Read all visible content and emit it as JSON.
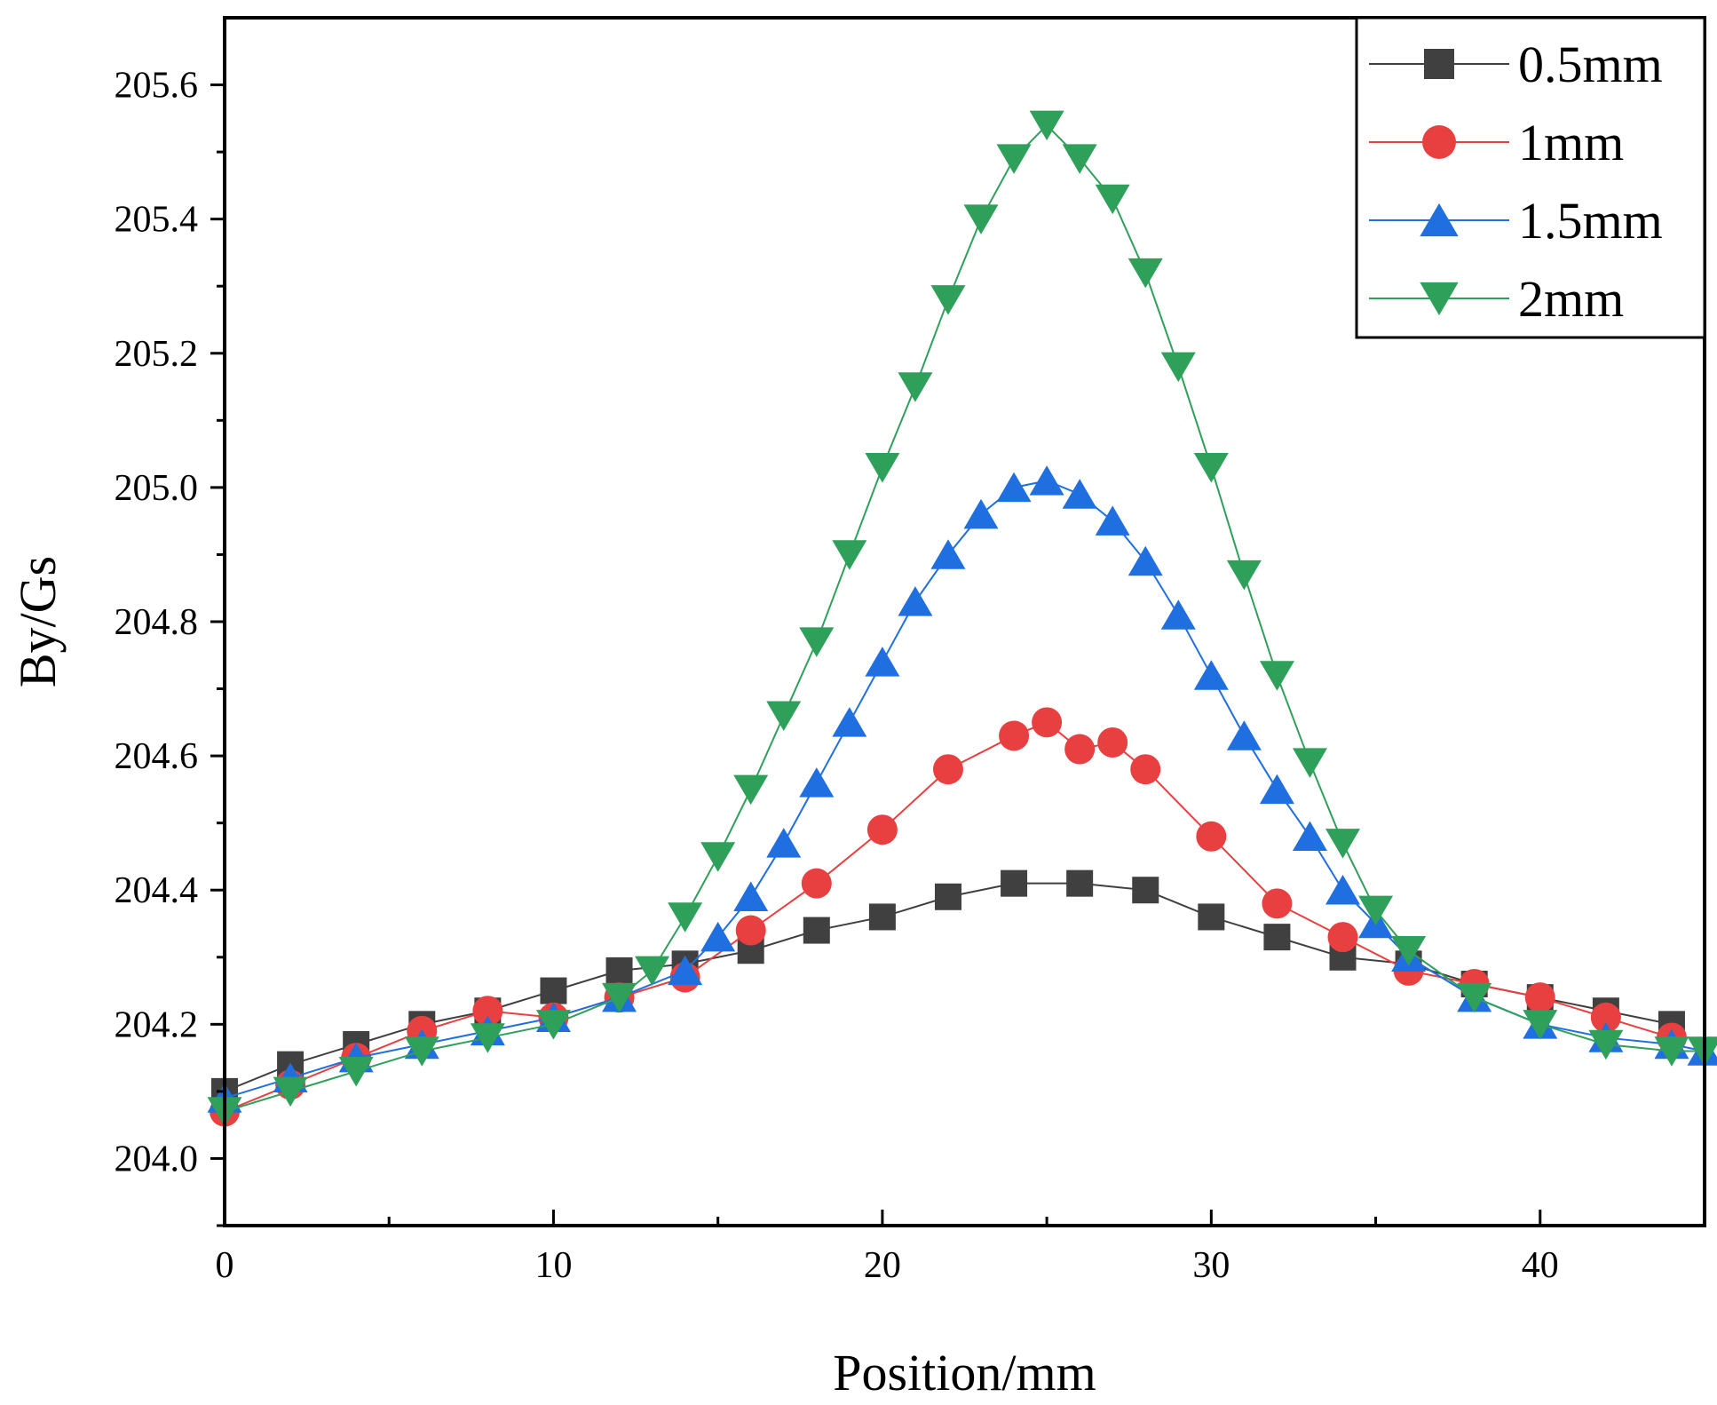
{
  "chart_data": {
    "type": "line",
    "title": "",
    "xlabel": "Position/mm",
    "ylabel": "By/Gs",
    "xlim": [
      0,
      45
    ],
    "ylim": [
      203.9,
      205.7
    ],
    "x_ticks": [
      0,
      10,
      20,
      30,
      40
    ],
    "x_tick_labels": [
      "0",
      "10",
      "20",
      "30",
      "40"
    ],
    "y_ticks": [
      204.0,
      204.2,
      204.4,
      204.6,
      204.8,
      205.0,
      205.2,
      205.4,
      205.6
    ],
    "y_tick_labels": [
      "204.0",
      "204.2",
      "204.4",
      "204.6",
      "204.8",
      "205.0",
      "205.2",
      "205.4",
      "205.6"
    ],
    "grid": false,
    "legend_position": "top-right",
    "series": [
      {
        "name": "0.5mm",
        "color": "#404040",
        "marker": "square",
        "x": [
          0,
          2,
          4,
          6,
          8,
          10,
          12,
          14,
          16,
          18,
          20,
          22,
          24,
          26,
          28,
          30,
          32,
          34,
          36,
          38,
          40,
          42,
          44
        ],
        "y": [
          204.1,
          204.14,
          204.17,
          204.2,
          204.22,
          204.25,
          204.28,
          204.29,
          204.31,
          204.34,
          204.36,
          204.39,
          204.41,
          204.41,
          204.4,
          204.36,
          204.33,
          204.3,
          204.29,
          204.26,
          204.24,
          204.22,
          204.2
        ]
      },
      {
        "name": "1mm",
        "color": "#e84040",
        "marker": "circle",
        "x": [
          0,
          2,
          4,
          6,
          8,
          10,
          12,
          14,
          16,
          18,
          20,
          22,
          24,
          25,
          26,
          27,
          28,
          30,
          32,
          34,
          36,
          38,
          40,
          42,
          44
        ],
        "y": [
          204.07,
          204.11,
          204.15,
          204.19,
          204.22,
          204.21,
          204.24,
          204.27,
          204.34,
          204.41,
          204.49,
          204.58,
          204.63,
          204.65,
          204.61,
          204.62,
          204.58,
          204.48,
          204.38,
          204.33,
          204.28,
          204.26,
          204.24,
          204.21,
          204.18
        ]
      },
      {
        "name": "1.5mm",
        "color": "#1f6fe0",
        "marker": "triangle-up",
        "x": [
          0,
          2,
          4,
          6,
          8,
          10,
          12,
          14,
          15,
          16,
          17,
          18,
          19,
          20,
          21,
          22,
          23,
          24,
          25,
          26,
          27,
          28,
          29,
          30,
          31,
          32,
          33,
          34,
          35,
          36,
          38,
          40,
          42,
          44,
          45
        ],
        "y": [
          204.09,
          204.12,
          204.15,
          204.17,
          204.19,
          204.21,
          204.24,
          204.28,
          204.33,
          204.39,
          204.47,
          204.56,
          204.65,
          204.74,
          204.83,
          204.9,
          204.96,
          205.0,
          205.01,
          204.99,
          204.95,
          204.89,
          204.81,
          204.72,
          204.63,
          204.55,
          204.48,
          204.4,
          204.35,
          204.3,
          204.24,
          204.2,
          204.18,
          204.17,
          204.16
        ]
      },
      {
        "name": "2mm",
        "color": "#2fa05a",
        "marker": "triangle-down",
        "x": [
          0,
          2,
          4,
          6,
          8,
          10,
          12,
          13,
          14,
          15,
          16,
          17,
          18,
          19,
          20,
          21,
          22,
          23,
          24,
          25,
          26,
          27,
          28,
          29,
          30,
          31,
          32,
          33,
          34,
          35,
          36,
          38,
          40,
          42,
          44,
          45
        ],
        "y": [
          204.07,
          204.1,
          204.13,
          204.16,
          204.18,
          204.2,
          204.24,
          204.28,
          204.36,
          204.45,
          204.55,
          204.66,
          204.77,
          204.9,
          205.03,
          205.15,
          205.28,
          205.4,
          205.49,
          205.54,
          205.49,
          205.43,
          205.32,
          205.18,
          205.03,
          204.87,
          204.72,
          204.59,
          204.47,
          204.37,
          204.31,
          204.24,
          204.2,
          204.17,
          204.16,
          204.16
        ]
      }
    ]
  }
}
